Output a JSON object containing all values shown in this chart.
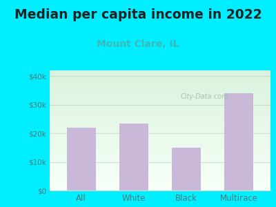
{
  "title": "Median per capita income in 2022",
  "subtitle": "Mount Clare, IL",
  "categories": [
    "All",
    "White",
    "Black",
    "Multirace"
  ],
  "values": [
    22000,
    23500,
    15000,
    34000
  ],
  "bar_color": "#c9b8d8",
  "bar_edge_color": "#b8a8cc",
  "title_fontsize": 13.5,
  "title_color": "#222222",
  "subtitle_fontsize": 10,
  "subtitle_color": "#3cb8b8",
  "bg_outer": "#00eeff",
  "ylim": [
    0,
    42000
  ],
  "yticks": [
    0,
    10000,
    20000,
    30000,
    40000
  ],
  "ytick_labels": [
    "$0",
    "$10k",
    "$20k",
    "$30k",
    "$40k"
  ],
  "watermark": "City-Data.com",
  "watermark_color": "#a0b8b0",
  "tick_color": "#557777",
  "grid_color": "#ccddcc"
}
